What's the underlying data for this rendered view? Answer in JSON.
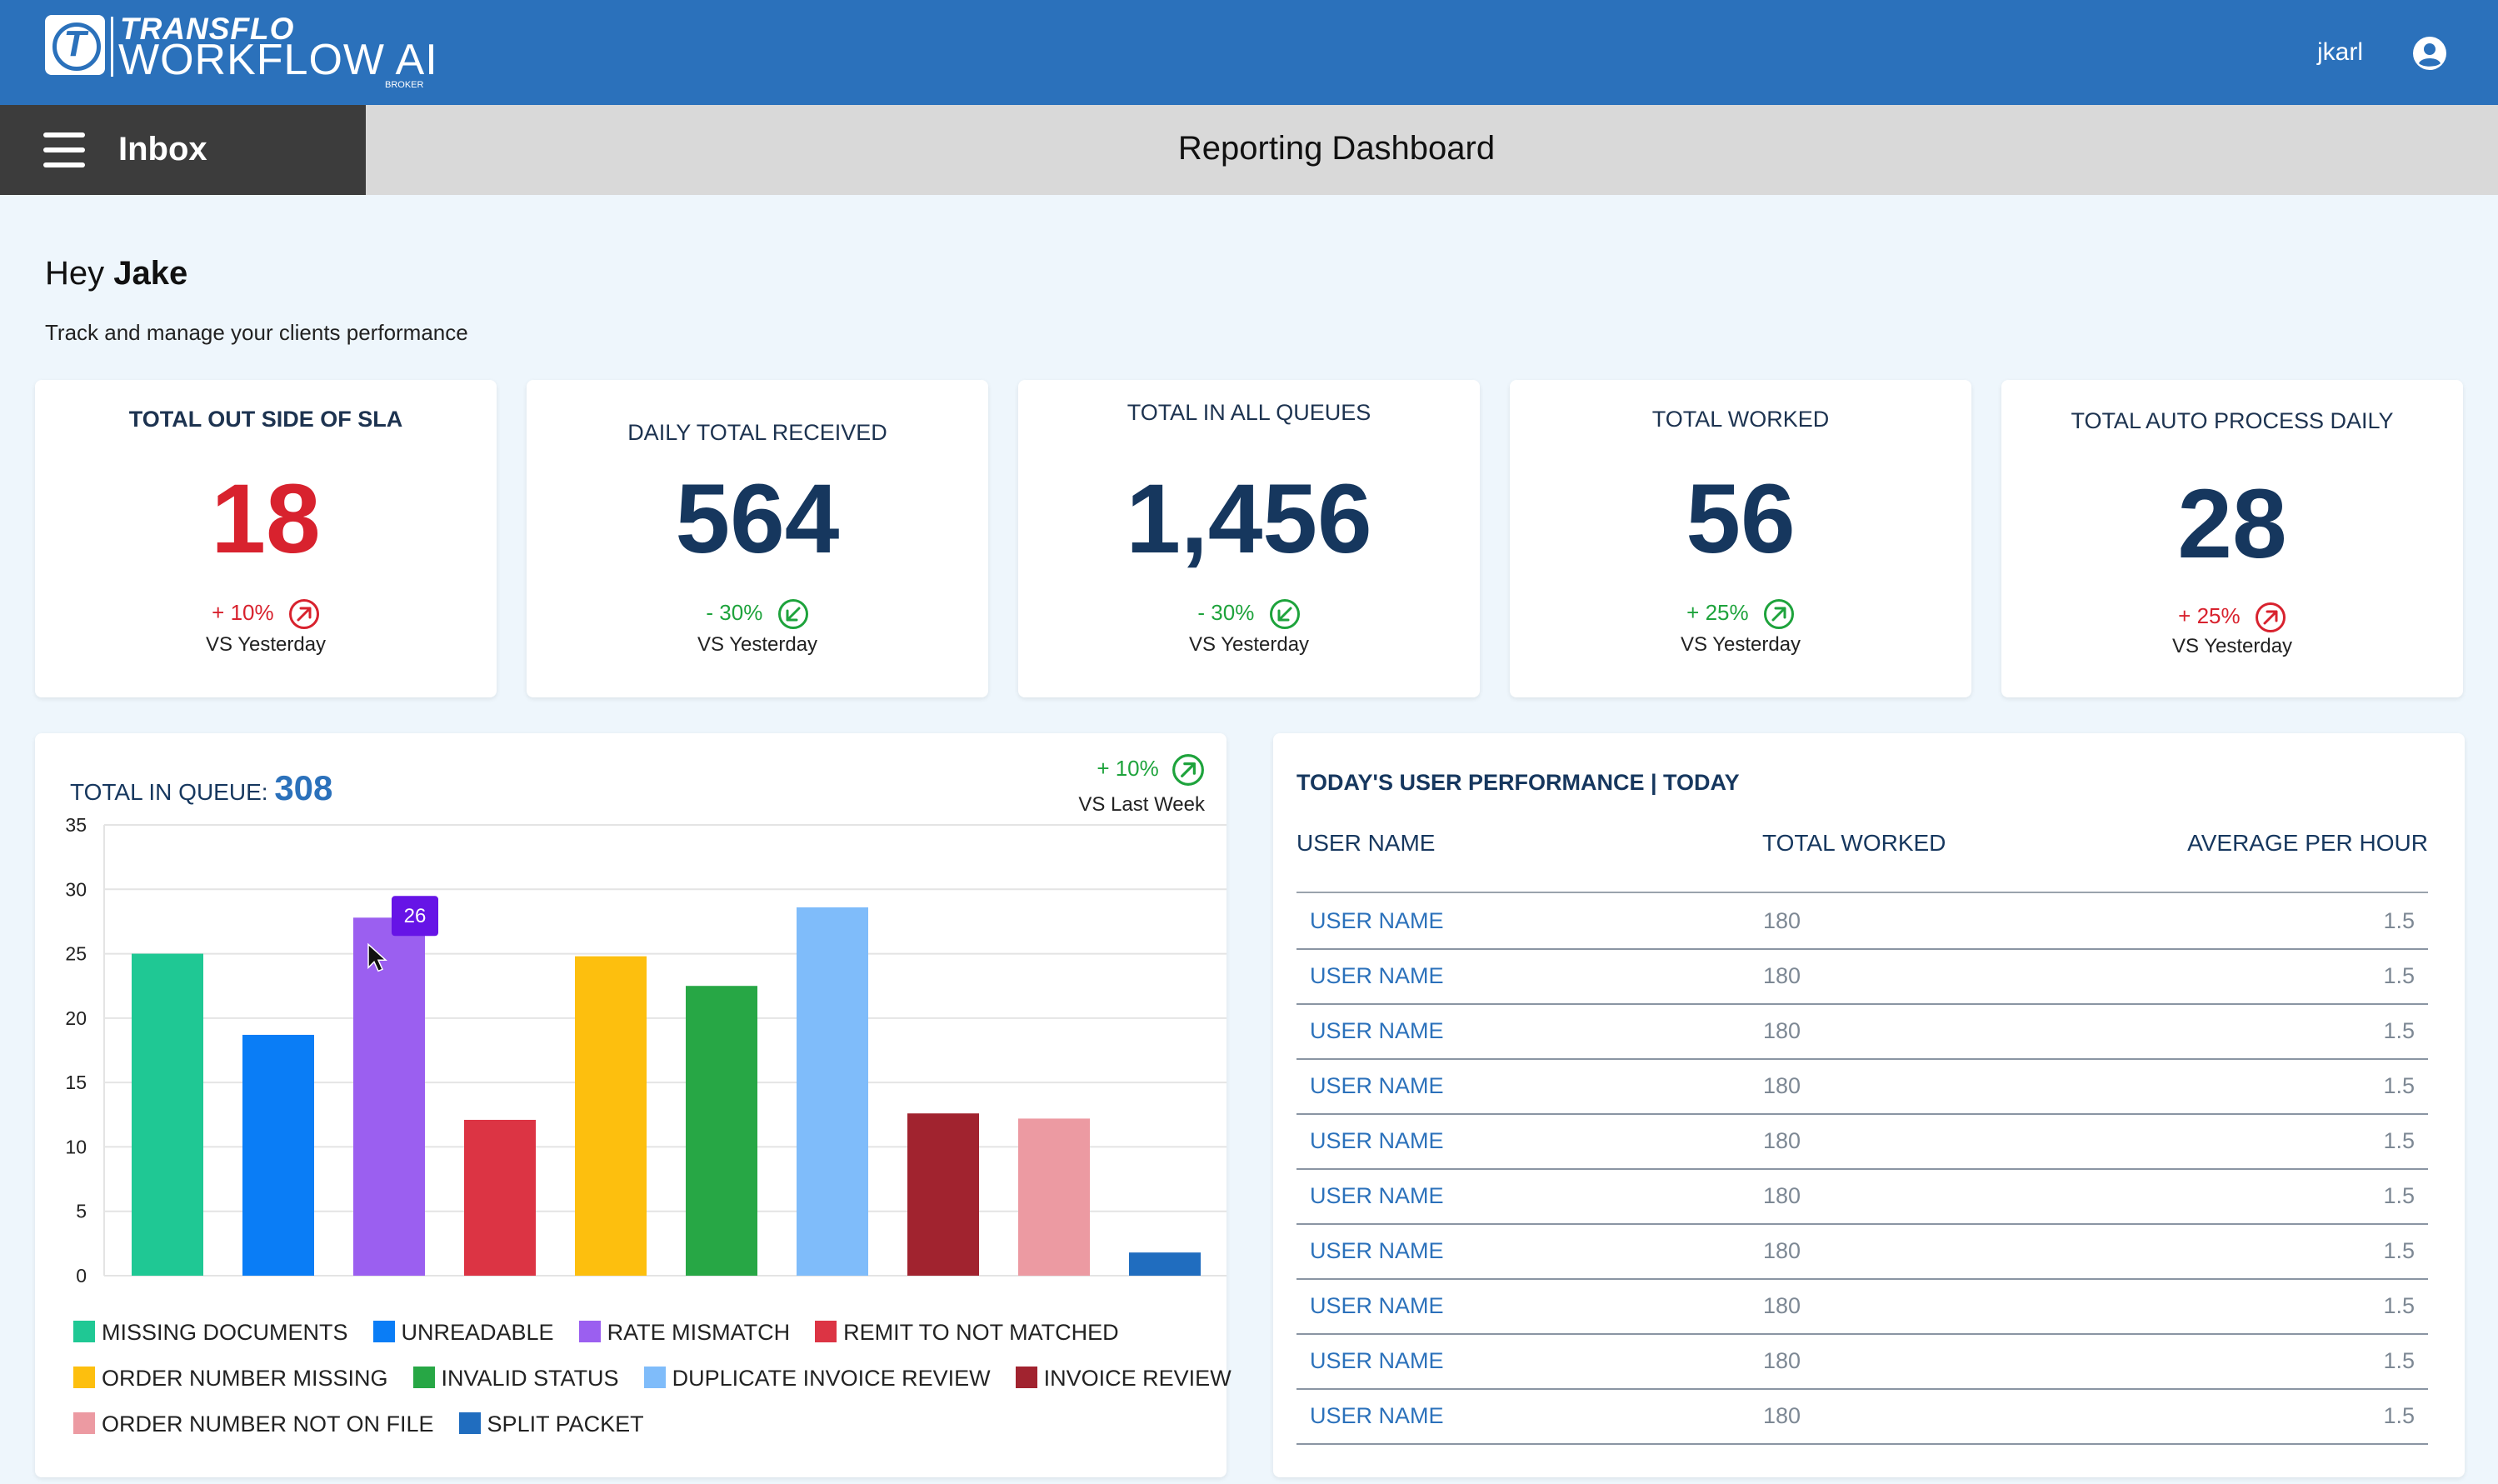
{
  "header": {
    "brand_top": "TRANSFLO",
    "brand_main": "WORKFLOW AI",
    "brand_sub": "BROKER",
    "logo_letter": "T",
    "username": "jkarl",
    "user_icon": "account-circle-icon"
  },
  "nav": {
    "menu_icon": "hamburger-menu-icon",
    "inbox_label": "Inbox",
    "page_title": "Reporting Dashboard"
  },
  "greeting": {
    "hey": "Hey",
    "name": "Jake",
    "subtitle": "Track and manage your clients performance"
  },
  "kpis": [
    {
      "title": "TOTAL OUT SIDE OF SLA",
      "value": "18",
      "change": "+ 10%",
      "trend": "up",
      "status": "negative",
      "vs": "VS Yesterday"
    },
    {
      "title": "DAILY TOTAL RECEIVED",
      "value": "564",
      "change": "- 30%",
      "trend": "down",
      "status": "positive",
      "vs": "VS Yesterday"
    },
    {
      "title": "TOTAL IN ALL QUEUES",
      "value": "1,456",
      "change": "- 30%",
      "trend": "down",
      "status": "positive",
      "vs": "VS Yesterday"
    },
    {
      "title": "TOTAL WORKED",
      "value": "56",
      "change": "+ 25%",
      "trend": "up",
      "status": "positive",
      "vs": "VS Yesterday"
    },
    {
      "title": "TOTAL AUTO PROCESS DAILY",
      "value": "28",
      "change": "+ 25%",
      "trend": "up",
      "status": "negative",
      "vs": "VS Yesterday"
    }
  ],
  "queue": {
    "title": "TOTAL IN QUEUE:",
    "total": "308",
    "change": "+ 10%",
    "vs": "VS Last Week",
    "tooltip": "26"
  },
  "chart_data": {
    "type": "bar",
    "categories": [
      "MISSING DOCUMENTS",
      "UNREADABLE",
      "RATE MISMATCH",
      "REMIT TO NOT MATCHED",
      "ORDER NUMBER MISSING",
      "INVALID STATUS",
      "DUPLICATE INVOICE REVIEW",
      "INVOICE REVIEW",
      "ORDER NUMBER NOT ON FILE",
      "SPLIT PACKET"
    ],
    "values": [
      25,
      18.7,
      27.8,
      12.1,
      24.8,
      22.5,
      28.6,
      12.6,
      12.2,
      1.8
    ],
    "colors": [
      "#1fc894",
      "#0a7df6",
      "#9b5ff0",
      "#dc3444",
      "#fdbf0e",
      "#27a745",
      "#7fbcfa",
      "#a1232f",
      "#ec9aa2",
      "#206dbf"
    ],
    "ylim": [
      0,
      35
    ],
    "yticks": [
      0,
      5,
      10,
      15,
      20,
      25,
      30,
      35
    ],
    "grid": true,
    "legend_position": "bottom"
  },
  "performance": {
    "title": "TODAY'S USER PERFORMANCE | TODAY",
    "columns": [
      "USER NAME",
      "TOTAL WORKED",
      "AVERAGE PER HOUR"
    ],
    "rows": [
      {
        "name": "USER NAME",
        "worked": "180",
        "avg": "1.5"
      },
      {
        "name": "USER NAME",
        "worked": "180",
        "avg": "1.5"
      },
      {
        "name": "USER NAME",
        "worked": "180",
        "avg": "1.5"
      },
      {
        "name": "USER NAME",
        "worked": "180",
        "avg": "1.5"
      },
      {
        "name": "USER NAME",
        "worked": "180",
        "avg": "1.5"
      },
      {
        "name": "USER NAME",
        "worked": "180",
        "avg": "1.5"
      },
      {
        "name": "USER NAME",
        "worked": "180",
        "avg": "1.5"
      },
      {
        "name": "USER NAME",
        "worked": "180",
        "avg": "1.5"
      },
      {
        "name": "USER NAME",
        "worked": "180",
        "avg": "1.5"
      },
      {
        "name": "USER NAME",
        "worked": "180",
        "avg": "1.5"
      }
    ]
  },
  "colors": {
    "brand_blue": "#2b71bb",
    "navy": "#16375e",
    "negative": "#d8222e",
    "positive": "#1ea33c"
  }
}
